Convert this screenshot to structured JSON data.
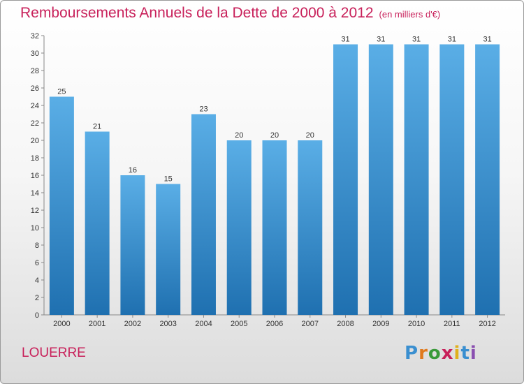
{
  "header": {
    "title": "Remboursements Annuels de la Dette de 2000 à 2012",
    "subtitle": "(en milliers d'€)"
  },
  "footer": {
    "commune": "LOUERRE",
    "logo": "Proxiti"
  },
  "colors": {
    "title": "#c8205a",
    "bar_top": "#5aaee6",
    "bar_bottom": "#1f70b0",
    "logo_letters": [
      "#3a8fd0",
      "#e07a1e",
      "#3a9a3a",
      "#c8205a",
      "#e0b01e",
      "#3a8fd0",
      "#8a4fb0"
    ]
  },
  "chart_data": {
    "type": "bar",
    "title": "Remboursements Annuels de la Dette de 2000 à 2012",
    "subtitle": "(en milliers d'€)",
    "categories": [
      "2000",
      "2001",
      "2002",
      "2003",
      "2004",
      "2005",
      "2006",
      "2007",
      "2008",
      "2009",
      "2010",
      "2011",
      "2012"
    ],
    "values": [
      25,
      21,
      16,
      15,
      23,
      20,
      20,
      20,
      31,
      31,
      31,
      31,
      31
    ],
    "ylim": [
      0,
      32
    ],
    "yticks": [
      0,
      2,
      4,
      6,
      8,
      10,
      12,
      14,
      16,
      18,
      20,
      22,
      24,
      26,
      28,
      30,
      32
    ],
    "grid": false,
    "data_labels": true
  }
}
